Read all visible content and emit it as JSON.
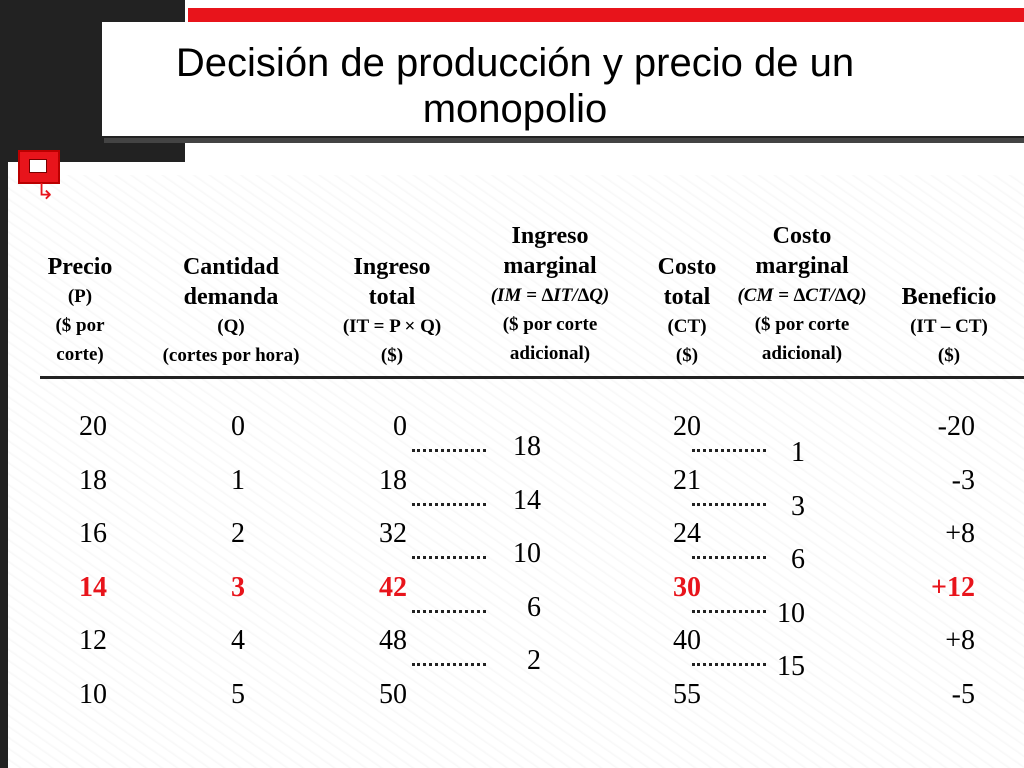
{
  "title": "Decisión de producción y precio de un monopolio",
  "columns": {
    "precio": {
      "l1": "Precio",
      "l2": "(P)",
      "l3": "($ por",
      "l4": "corte)"
    },
    "cantidad": {
      "l1": "Cantidad",
      "l2": "demanda",
      "l3": "(Q)",
      "l4": "(cortes por hora)"
    },
    "ingreso_total": {
      "l1": "Ingreso",
      "l2": "total",
      "l3": "(IT = P × Q)",
      "l4": "($)"
    },
    "ingreso_marginal": {
      "l1": "Ingreso",
      "l2": "marginal",
      "l3": "(IM = ∆IT/∆Q)",
      "l4": "($ por corte",
      "l5": "adicional)"
    },
    "costo_total": {
      "l1": "Costo",
      "l2": "total",
      "l3": "(CT)",
      "l4": "($)"
    },
    "costo_marginal": {
      "l1": "Costo",
      "l2": "marginal",
      "l3": "(CM = ∆CT/∆Q)",
      "l4": "($ por corte",
      "l5": "adicional)"
    },
    "beneficio": {
      "l1": "Beneficio",
      "l2": "(IT – CT)",
      "l3": "($)"
    }
  },
  "rows": [
    {
      "p": "20",
      "q": "0",
      "it": "0",
      "ct": "20",
      "b": "-20"
    },
    {
      "p": "18",
      "q": "1",
      "it": "18",
      "ct": "21",
      "b": "-3"
    },
    {
      "p": "16",
      "q": "2",
      "it": "32",
      "ct": "24",
      "b": "+8"
    },
    {
      "p": "14",
      "q": "3",
      "it": "42",
      "ct": "30",
      "b": "+12"
    },
    {
      "p": "12",
      "q": "4",
      "it": "48",
      "ct": "40",
      "b": "+8"
    },
    {
      "p": "10",
      "q": "5",
      "it": "50",
      "ct": "55",
      "b": "-5"
    }
  ],
  "ingreso_marginal_values": [
    "18",
    "14",
    "10",
    "6",
    "2"
  ],
  "costo_marginal_values": [
    "1",
    "3",
    "6",
    "10",
    "15"
  ],
  "highlight_color": "#e8141b",
  "accent_color": "#e8141b"
}
